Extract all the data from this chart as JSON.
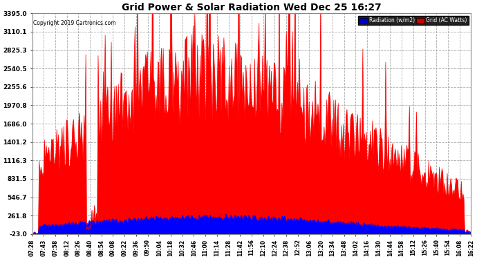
{
  "title": "Grid Power & Solar Radiation Wed Dec 25 16:27",
  "copyright": "Copyright 2019 Cartronics.com",
  "legend_labels": [
    "Radiation (w/m2)",
    "Grid (AC Watts)"
  ],
  "yticks": [
    -23.0,
    261.8,
    546.7,
    831.5,
    1116.3,
    1401.2,
    1686.0,
    1970.8,
    2255.6,
    2540.5,
    2825.3,
    3110.1,
    3395.0
  ],
  "ymin": -23.0,
  "ymax": 3395.0,
  "background_color": "#ffffff",
  "plot_bg": "#ffffff",
  "grid_color": "#aaaaaa",
  "fill_color_grid": "#ff0000",
  "fill_color_radiation": "#0000ff",
  "line_color_grid": "#ff0000",
  "line_color_radiation": "#0000ff",
  "xtick_labels": [
    "07:28",
    "07:43",
    "07:58",
    "08:12",
    "08:26",
    "08:40",
    "08:54",
    "09:08",
    "09:22",
    "09:36",
    "09:50",
    "10:04",
    "10:18",
    "10:32",
    "10:46",
    "11:00",
    "11:14",
    "11:28",
    "11:42",
    "11:56",
    "12:10",
    "12:24",
    "12:38",
    "12:52",
    "13:06",
    "13:20",
    "13:34",
    "13:48",
    "14:02",
    "14:16",
    "14:30",
    "14:44",
    "14:58",
    "15:12",
    "15:26",
    "15:40",
    "15:54",
    "16:08",
    "16:22"
  ]
}
